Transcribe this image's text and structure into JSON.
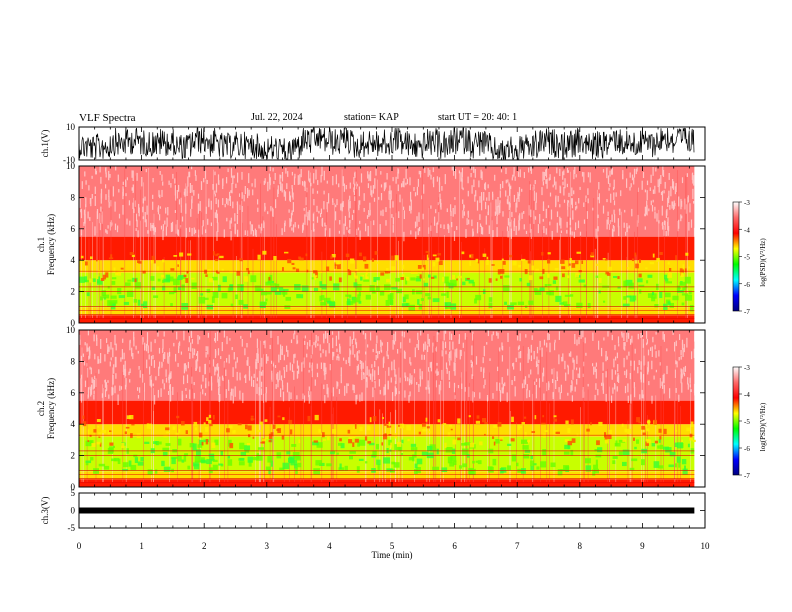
{
  "header": {
    "title": "VLF Spectra",
    "date": "Jul. 22, 2024",
    "station": "station= KAP",
    "start": "start UT =  20: 40: 1"
  },
  "colorbar": {
    "label": "log(PSD)(V²/Hz)",
    "ticks": [
      "-3",
      "-4",
      "-5",
      "-6",
      "-7"
    ],
    "colors": [
      "#ffffff",
      "#ff6a6a",
      "#ff0000",
      "#ffff00",
      "#00ff00",
      "#00ffff",
      "#0000ff",
      "#000080"
    ]
  },
  "chart_data": [
    {
      "type": "line",
      "panel": "ch.1 waveform",
      "ylabel": "ch.1(V)",
      "ylim": [
        -10,
        10
      ],
      "yticks": [
        "10",
        "-10"
      ],
      "xlim": [
        0,
        10
      ],
      "color": "#000000",
      "description_values": {
        "x_end_min": 9.83,
        "amplitude_range_V": [
          -10,
          10
        ]
      }
    },
    {
      "type": "heatmap",
      "panel": "ch.1 spectrogram",
      "ylabel": "ch.1\nFrequency (kHz)",
      "ylim": [
        0,
        10
      ],
      "yticks": [
        "0",
        "2",
        "4",
        "6",
        "8",
        "10"
      ],
      "xlim": [
        0,
        10
      ],
      "x_end_min": 9.83,
      "bands_kHz": [
        {
          "from": 0.0,
          "to": 0.5,
          "level": -4.0
        },
        {
          "from": 0.5,
          "to": 1.0,
          "level": -4.8
        },
        {
          "from": 1.0,
          "to": 3.2,
          "level": -5.3
        },
        {
          "from": 3.2,
          "to": 4.0,
          "level": -4.6
        },
        {
          "from": 4.0,
          "to": 5.5,
          "level": -4.0
        },
        {
          "from": 5.5,
          "to": 10.0,
          "level": -3.4
        }
      ]
    },
    {
      "type": "heatmap",
      "panel": "ch.2 spectrogram",
      "ylabel": "ch.2\nFrequency (kHz)",
      "ylim": [
        0,
        10
      ],
      "yticks": [
        "0",
        "2",
        "4",
        "6",
        "8",
        "10"
      ],
      "xlim": [
        0,
        10
      ],
      "x_end_min": 9.83,
      "bands_kHz": [
        {
          "from": 0.0,
          "to": 0.5,
          "level": -4.0
        },
        {
          "from": 0.5,
          "to": 1.0,
          "level": -4.8
        },
        {
          "from": 1.0,
          "to": 3.2,
          "level": -5.3
        },
        {
          "from": 3.2,
          "to": 4.0,
          "level": -4.6
        },
        {
          "from": 4.0,
          "to": 5.5,
          "level": -4.0
        },
        {
          "from": 5.5,
          "to": 10.0,
          "level": -3.4
        }
      ]
    },
    {
      "type": "line",
      "panel": "ch.3 waveform",
      "ylabel": "ch.3(V)",
      "ylim": [
        -5,
        5
      ],
      "yticks": [
        "5",
        "0",
        "-5"
      ],
      "xlim": [
        0,
        10
      ],
      "x_end_min": 9.83,
      "level_V": 0,
      "color": "#000000"
    }
  ],
  "xaxis": {
    "label": "Time (min)",
    "ticks": [
      "0",
      "1",
      "2",
      "3",
      "4",
      "5",
      "6",
      "7",
      "8",
      "9",
      "10"
    ],
    "range": [
      0,
      10
    ]
  }
}
